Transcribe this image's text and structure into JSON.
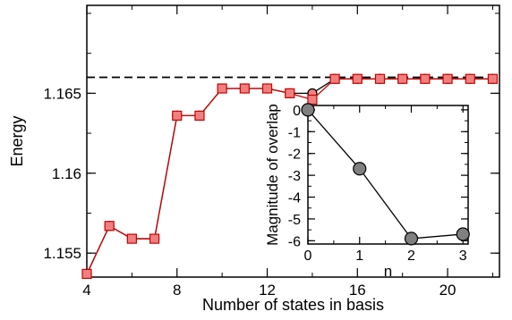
{
  "chart_data": [
    {
      "type": "line",
      "xlabel": "Number of states in basis",
      "ylabel": "Energy",
      "xlim": [
        4,
        22.3
      ],
      "ylim": [
        1.1535,
        1.1705
      ],
      "xticks": [
        4,
        8,
        12,
        16,
        20
      ],
      "xtick_labels": [
        "4",
        "8",
        "12",
        "16",
        "20"
      ],
      "yticks": [
        1.155,
        1.16,
        1.165
      ],
      "ytick_labels": [
        "1.155",
        "1.16",
        "1.165"
      ],
      "reference_line": {
        "y": 1.166,
        "style": "dashed",
        "color": "#000000"
      },
      "series": [
        {
          "marker": "circle",
          "color": "#000000",
          "fill": "#f08080",
          "x": [
            4,
            5,
            6,
            7,
            8,
            9,
            10,
            11,
            12,
            13,
            14,
            15,
            16,
            17,
            18,
            19,
            20,
            21,
            22
          ],
          "y": [
            1.1537,
            1.1567,
            1.1559,
            1.1559,
            1.1636,
            1.1636,
            1.1653,
            1.1653,
            1.1653,
            1.165,
            1.165,
            1.1659,
            1.1659,
            1.1659,
            1.1659,
            1.1659,
            1.1659,
            1.1659,
            1.1659
          ]
        },
        {
          "marker": "square",
          "color": "#cc0000",
          "fill": "#f08080",
          "x": [
            4,
            5,
            6,
            7,
            8,
            9,
            10,
            11,
            12,
            13,
            14,
            15,
            16,
            17,
            18,
            19,
            20,
            21,
            22
          ],
          "y": [
            1.1537,
            1.1567,
            1.1559,
            1.1559,
            1.1636,
            1.1636,
            1.1653,
            1.1653,
            1.1653,
            1.165,
            1.1646,
            1.1659,
            1.1659,
            1.1659,
            1.1659,
            1.1659,
            1.1659,
            1.1659,
            1.1659
          ]
        }
      ]
    },
    {
      "type": "line",
      "inset": true,
      "xlabel": "n",
      "ylabel": "Magnitude of overlap",
      "xlim": [
        0,
        3.1
      ],
      "ylim": [
        -6.15,
        0.2
      ],
      "xticks": [
        0,
        1,
        2,
        3
      ],
      "xtick_labels": [
        "0",
        "1",
        "2",
        "3"
      ],
      "yticks": [
        0,
        -1,
        -2,
        -3,
        -4,
        -5,
        -6
      ],
      "ytick_labels": [
        "0",
        "-1",
        "-2",
        "-3",
        "-4",
        "-5",
        "-6"
      ],
      "series": [
        {
          "marker": "circle",
          "color": "#000000",
          "fill": "#808080",
          "x": [
            0,
            1,
            2,
            3
          ],
          "y": [
            0,
            -2.7,
            -5.9,
            -5.7
          ]
        }
      ]
    }
  ]
}
